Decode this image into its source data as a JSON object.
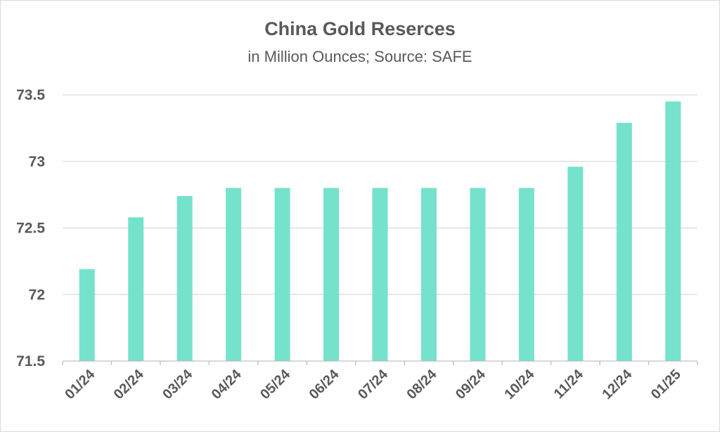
{
  "chart_data": {
    "type": "bar",
    "title": "China Gold Reserces",
    "subtitle": "in Million Ounces; Source: SAFE",
    "categories": [
      "01/24",
      "02/24",
      "03/24",
      "04/24",
      "05/24",
      "06/24",
      "07/24",
      "08/24",
      "09/24",
      "10/24",
      "11/24",
      "12/24",
      "01/25"
    ],
    "values": [
      72.19,
      72.58,
      72.74,
      72.8,
      72.8,
      72.8,
      72.8,
      72.8,
      72.8,
      72.8,
      72.96,
      73.29,
      73.45
    ],
    "ylim": [
      71.5,
      73.5
    ],
    "yticks": [
      71.5,
      72,
      72.5,
      73,
      73.5
    ],
    "ytick_labels": [
      "71.5",
      "72",
      "72.5",
      "73",
      "73.5"
    ],
    "xlabel": "",
    "ylabel": "",
    "grid": true,
    "colors": {
      "bar": "#75e2cc",
      "grid": "#d9d9d9",
      "axis": "#bfbfbf",
      "text": "#595959"
    }
  }
}
